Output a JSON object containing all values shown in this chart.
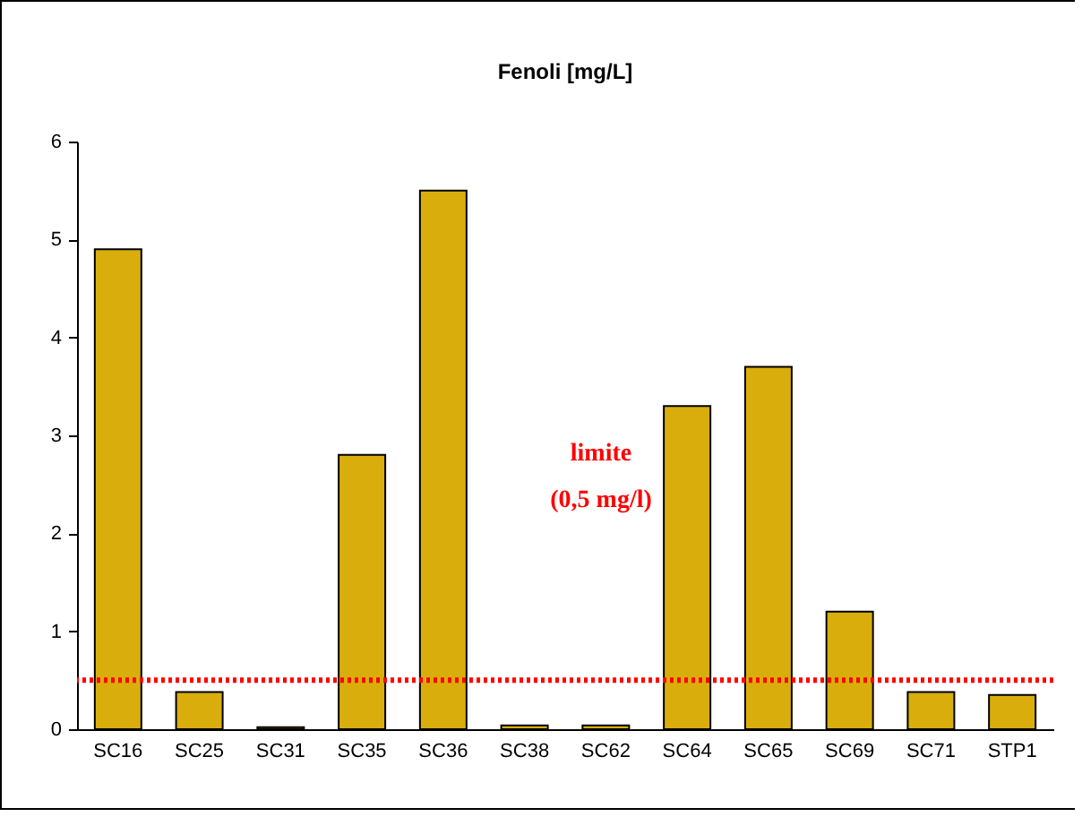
{
  "chart_data": {
    "type": "bar",
    "title": "Fenoli [mg/L]",
    "categories": [
      "SC16",
      "SC25",
      "SC31",
      "SC35",
      "SC36",
      "SC38",
      "SC62",
      "SC64",
      "SC65",
      "SC69",
      "SC71",
      "STP1"
    ],
    "values": [
      4.9,
      0.38,
      0.02,
      2.8,
      5.5,
      0.04,
      0.04,
      3.3,
      3.7,
      1.2,
      0.38,
      0.35
    ],
    "color": "#d9ae0c",
    "ylim": [
      0,
      6
    ],
    "yticks": [
      0,
      1,
      2,
      3,
      4,
      5,
      6
    ],
    "grid": false,
    "ref_lines": [
      {
        "axis": "y",
        "value": 0.5,
        "label": "limite\n(0,5  mg/l)",
        "color": "#ff0000",
        "line_style": "dotted"
      }
    ]
  }
}
